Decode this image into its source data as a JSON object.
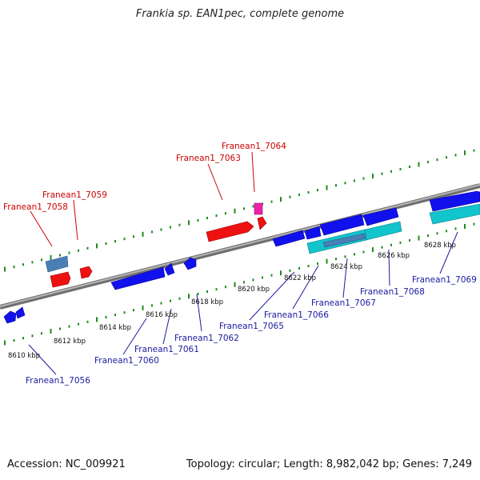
{
  "title": "Frankia sp. EAN1pec, complete genome",
  "footer": {
    "accession": "Accession: NC_009921",
    "summary": "Topology: circular; Length: 8,982,042 bp; Genes: 7,249"
  },
  "colors": {
    "backbone": "#8a8a8a",
    "tick": "#1f8a1f",
    "forward_gene": "#ee1111",
    "forward_label": "#cc0000",
    "reverse_gene": "#1111ee",
    "reverse_label": "#1a1aa0",
    "cds_steel": "#4a7fb5",
    "cds_cyan": "#12c4cc",
    "pseudo_magenta": "#ee22aa"
  },
  "coordinates": [
    "8610 kbp",
    "8612 kbp",
    "8614 kbp",
    "8616 kbp",
    "8618 kbp",
    "8620 kbp",
    "8622 kbp",
    "8624 kbp",
    "8626 kbp",
    "8628 kbp"
  ],
  "forward_genes": [
    "Franean1_7058",
    "Franean1_7059",
    "Franean1_7063",
    "Franean1_7064"
  ],
  "reverse_genes": [
    "Franean1_7056",
    "Franean1_7060",
    "Franean1_7061",
    "Franean1_7062",
    "Franean1_7065",
    "Franean1_7066",
    "Franean1_7067",
    "Franean1_7068",
    "Franean1_7069"
  ]
}
